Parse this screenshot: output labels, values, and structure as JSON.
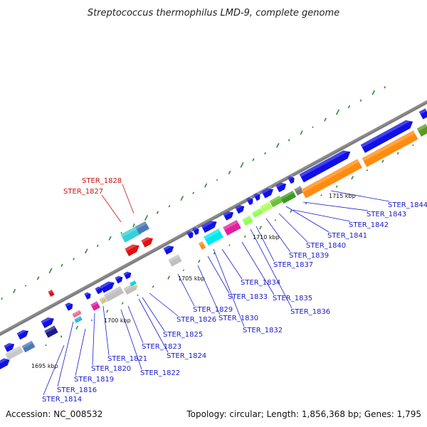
{
  "title": "Streptococcus thermophilus LMD-9, complete genome",
  "footer": {
    "accession": "Accession: NC_008532",
    "summary": "Topology: circular; Length: 1,856,368 bp; Genes: 1,795"
  },
  "ticks": [
    "1695 kbp",
    "1700 kbp",
    "1705 kbp",
    "1710 kbp",
    "1715 kbp"
  ],
  "colors": {
    "backbone": "#8c8c8c",
    "cds_forward": "#1010e6",
    "highlight": "#e01010",
    "label": "#1a1acc",
    "highlight_label": "#cc1111",
    "gc_marks": "#2e8b2e"
  },
  "labels": [
    {
      "id": "STER_1814",
      "color": "label"
    },
    {
      "id": "STER_1816",
      "color": "label"
    },
    {
      "id": "STER_1819",
      "color": "label"
    },
    {
      "id": "STER_1820",
      "color": "label"
    },
    {
      "id": "STER_1821",
      "color": "label"
    },
    {
      "id": "STER_1822",
      "color": "label"
    },
    {
      "id": "STER_1823",
      "color": "label"
    },
    {
      "id": "STER_1824",
      "color": "label"
    },
    {
      "id": "STER_1825",
      "color": "label"
    },
    {
      "id": "STER_1826",
      "color": "label"
    },
    {
      "id": "STER_1827",
      "color": "highlight_label"
    },
    {
      "id": "STER_1828",
      "color": "highlight_label"
    },
    {
      "id": "STER_1829",
      "color": "label"
    },
    {
      "id": "STER_1830",
      "color": "label"
    },
    {
      "id": "STER_1832",
      "color": "label"
    },
    {
      "id": "STER_1833",
      "color": "label"
    },
    {
      "id": "STER_1834",
      "color": "label"
    },
    {
      "id": "STER_1835",
      "color": "label"
    },
    {
      "id": "STER_1836",
      "color": "label"
    },
    {
      "id": "STER_1837",
      "color": "label"
    },
    {
      "id": "STER_1839",
      "color": "label"
    },
    {
      "id": "STER_1840",
      "color": "label"
    },
    {
      "id": "STER_1841",
      "color": "label"
    },
    {
      "id": "STER_1842",
      "color": "label"
    },
    {
      "id": "STER_1843",
      "color": "label"
    },
    {
      "id": "STER_1844",
      "color": "label"
    }
  ]
}
